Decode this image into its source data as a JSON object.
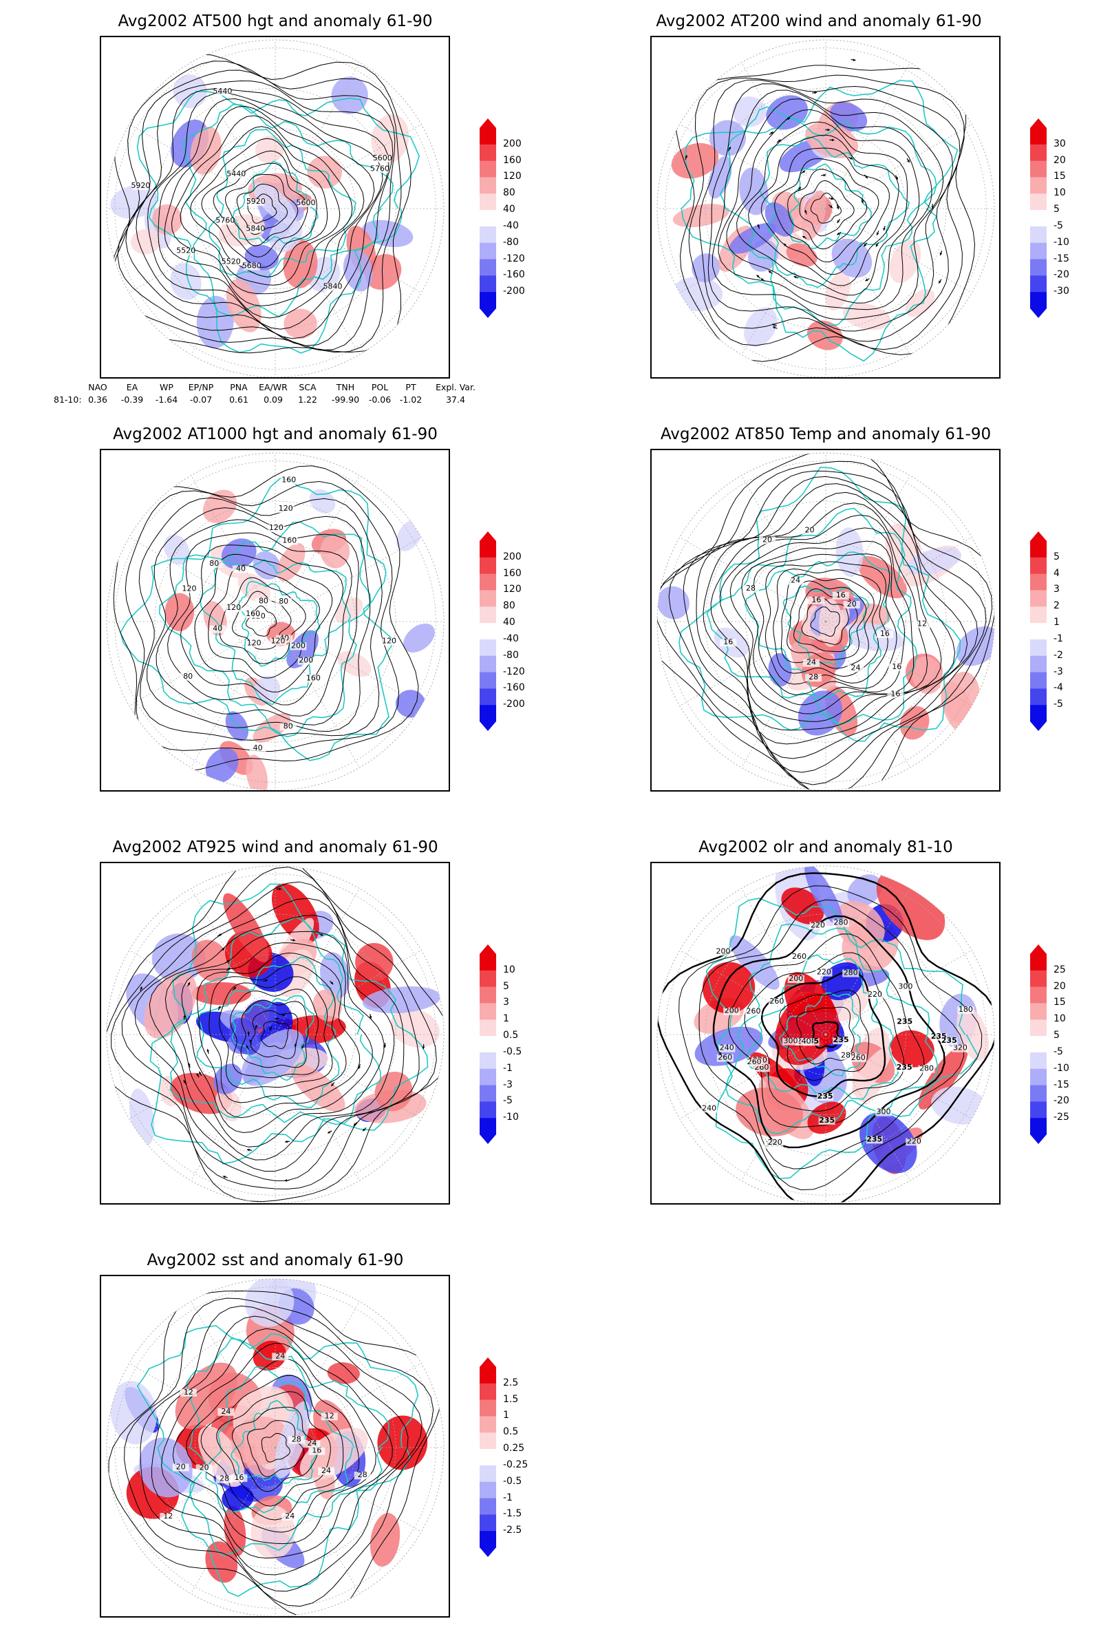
{
  "panels": [
    {
      "id": "p1",
      "title": "Avg2002 AT500 hgt and anomaly 61-90",
      "colorbar": [
        "200",
        "160",
        "120",
        "80",
        "40",
        "-40",
        "-80",
        "-120",
        "-160",
        "-200"
      ],
      "contour_labels": [
        "5600",
        "5520",
        "5440",
        "5440",
        "5520",
        "5600",
        "5680",
        "5760",
        "5760",
        "5840",
        "5920",
        "5840",
        "5920"
      ]
    },
    {
      "id": "p2",
      "title": "Avg2002 AT200 wind and anomaly 61-90",
      "colorbar": [
        "30",
        "20",
        "15",
        "10",
        "5",
        "-5",
        "-10",
        "-15",
        "-20",
        "-30"
      ],
      "contour_labels": []
    },
    {
      "id": "p3",
      "title": "Avg2002 AT1000 hgt and anomaly 61-90",
      "colorbar": [
        "200",
        "160",
        "120",
        "80",
        "40",
        "-40",
        "-80",
        "-120",
        "-160",
        "-200"
      ],
      "contour_labels": [
        "120",
        "200",
        "160",
        "120",
        "160",
        "120",
        "80",
        "40",
        "40",
        "120",
        "80",
        "160",
        "120",
        "200",
        "160",
        "80",
        "120",
        "80",
        "40",
        "80",
        "120",
        "40",
        "120"
      ]
    },
    {
      "id": "p4",
      "title": "Avg2002 AT850 Temp and anomaly 61-90",
      "colorbar": [
        "5",
        "4",
        "3",
        "2",
        "1",
        "-1",
        "-2",
        "-3",
        "-4",
        "-5"
      ],
      "contour_labels": [
        "16",
        "16",
        "16",
        "20",
        "24",
        "28",
        "12",
        "16",
        "20",
        "24",
        "28",
        "20",
        "24",
        "16",
        "16"
      ]
    },
    {
      "id": "p5",
      "title": "Avg2002 AT925 wind and anomaly 61-90",
      "colorbar": [
        "10",
        "5",
        "3",
        "1",
        "0.5",
        "-0.5",
        "-1",
        "-3",
        "-5",
        "-10"
      ],
      "contour_labels": []
    },
    {
      "id": "p6",
      "title": "Avg2002 olr and anomaly 81-10",
      "colorbar": [
        "25",
        "20",
        "15",
        "10",
        "5",
        "-5",
        "-10",
        "-15",
        "-20",
        "-25"
      ],
      "contour_labels": [
        "235",
        "220",
        "200",
        "260",
        "235",
        "220",
        "180",
        "235",
        "260",
        "240",
        "235",
        "200",
        "280",
        "260",
        "300",
        "235",
        "220",
        "235",
        "180",
        "260",
        "220",
        "200",
        "280",
        "235",
        "240",
        "220",
        "260",
        "300",
        "280",
        "320",
        "235",
        "240",
        "235",
        "260",
        "300",
        "280",
        "220",
        "260"
      ]
    },
    {
      "id": "p7",
      "title": "Avg2002 sst and anomaly 61-90",
      "colorbar": [
        "2.5",
        "1.5",
        "1",
        "0.5",
        "0.25",
        "-0.25",
        "-0.5",
        "-1",
        "-1.5",
        "-2.5"
      ],
      "contour_labels": [
        "28",
        "24",
        "20",
        "16",
        "12",
        "12",
        "24",
        "24",
        "20",
        "16",
        "12",
        "28",
        "24",
        "28",
        "24"
      ]
    }
  ],
  "colors": {
    "reds": [
      "#e8000b",
      "#f0454c",
      "#f57a7e",
      "#f9adaf",
      "#fcd9da"
    ],
    "blues": [
      "#d9d9fc",
      "#adadf9",
      "#7a7af5",
      "#4545f0",
      "#0b0be8"
    ],
    "coast": "#1fc9c3",
    "frame": "#000000"
  },
  "teleconnections": {
    "headers": [
      "NAO",
      "EA",
      "WP",
      "EP/NP",
      "PNA",
      "EA/WR",
      "SCA",
      "TNH",
      "POL",
      "PT",
      "Expl. Var."
    ],
    "row_label": "81-10:",
    "values": [
      "0.36",
      "-0.39",
      "-1.64",
      "-0.07",
      "0.61",
      "0.09",
      "1.22",
      "-99.90",
      "-0.06",
      "-1.02",
      "37.4"
    ]
  }
}
